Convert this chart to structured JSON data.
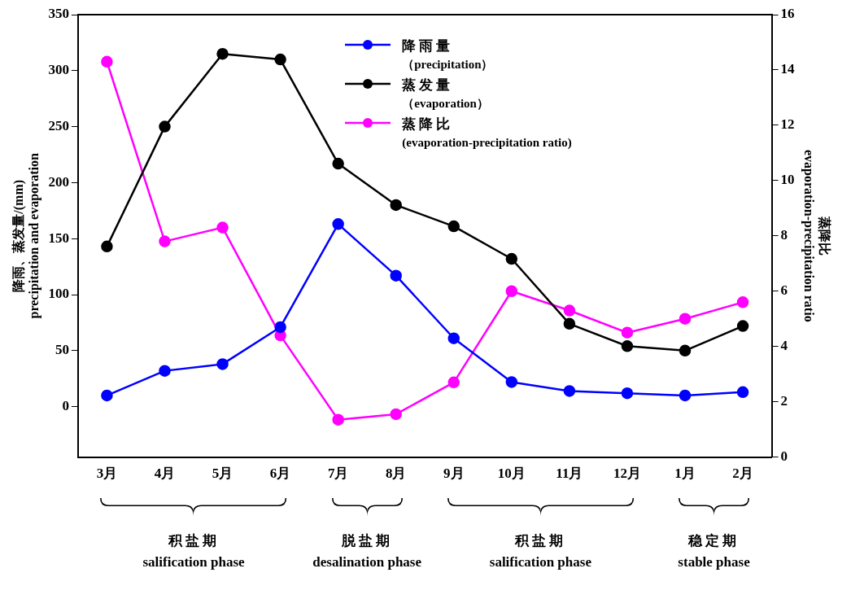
{
  "chart_data": {
    "type": "line",
    "categories": [
      "3月",
      "4月",
      "5月",
      "6月",
      "7月",
      "8月",
      "9月",
      "10月",
      "11月",
      "12月",
      "1月",
      "2月"
    ],
    "ylabel": "降雨、蒸发量/(mm)\nprecipitation and evaporation",
    "y2label": "蒸降比\nevaporation-precipitation ratio",
    "ylim": [
      -45,
      350
    ],
    "yticks": [
      0,
      50,
      100,
      150,
      200,
      250,
      300,
      350
    ],
    "y2lim": [
      0,
      16
    ],
    "y2ticks": [
      0,
      2,
      4,
      6,
      8,
      10,
      12,
      14,
      16
    ],
    "grid": false,
    "legend": "top",
    "marker": "circle",
    "line_style": "solid",
    "series": [
      {
        "name": "降雨量（precipitation）",
        "color": "#0000ff",
        "values": [
          10,
          32,
          38,
          71,
          163,
          117,
          61,
          22,
          14,
          12,
          10,
          13
        ]
      },
      {
        "name": "蒸发量（evaporation）",
        "color": "#000000",
        "values": [
          143,
          250,
          315,
          310,
          217,
          180,
          161,
          132,
          74,
          54,
          50,
          72
        ]
      },
      {
        "name": "蒸降比\n(evaporation-precipitation ratio)",
        "color": "#ff00ff",
        "axis": "y2",
        "values": [
          14.3,
          7.8,
          8.3,
          4.4,
          1.35,
          1.55,
          2.7,
          6.0,
          5.3,
          4.5,
          5.0,
          5.6
        ]
      }
    ],
    "annotations": [
      "积盐期\nsalification phase",
      "脱盐期\ndesalination phase",
      "积盐期\nsalification phase",
      "稳定期\nstable phase"
    ]
  }
}
